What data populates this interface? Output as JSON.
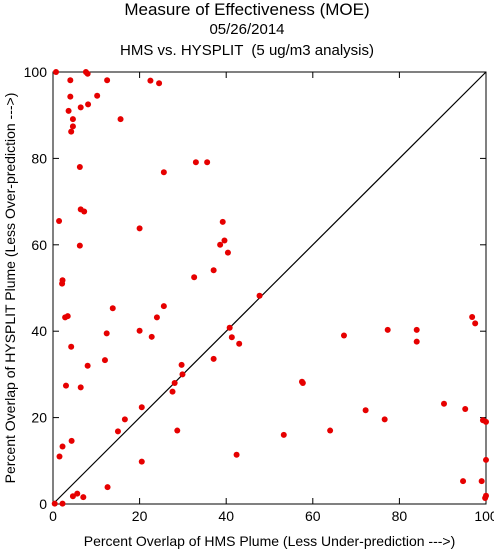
{
  "chart_data": {
    "type": "scatter",
    "title": "Measure of Effectiveness (MOE)",
    "subtitle_date": "05/26/2014",
    "subtitle": "HMS vs. HYSPLIT  (5 ug/m3 analysis)",
    "xlabel": "Percent Overlap of HMS Plume (Less Under-prediction --->)",
    "ylabel": "Percent Overlap of HYSPLIT Plume (Less Over-prediction --->)",
    "xlim": [
      0,
      100
    ],
    "ylim": [
      0,
      100
    ],
    "xticks": [
      0,
      20,
      40,
      60,
      80,
      100
    ],
    "yticks": [
      0,
      20,
      40,
      60,
      80,
      100
    ],
    "grid": false,
    "reference_line": "y = x",
    "marker_color": "#e60000",
    "points": [
      [
        0.7,
        100
      ],
      [
        7.6,
        100
      ],
      [
        8,
        99.6
      ],
      [
        12.5,
        98.1
      ],
      [
        4,
        98.1
      ],
      [
        22.5,
        98
      ],
      [
        24.5,
        97.4
      ],
      [
        4,
        94.3
      ],
      [
        10.2,
        94.5
      ],
      [
        8.1,
        92.5
      ],
      [
        6.4,
        91.8
      ],
      [
        3.6,
        91
      ],
      [
        4.6,
        89.1
      ],
      [
        15.6,
        89.1
      ],
      [
        4.6,
        87.4
      ],
      [
        4.2,
        86.2
      ],
      [
        6.2,
        78
      ],
      [
        33,
        79.1
      ],
      [
        35.6,
        79.1
      ],
      [
        25.6,
        76.8
      ],
      [
        6.4,
        68.2
      ],
      [
        7.2,
        67.7
      ],
      [
        1.4,
        65.5
      ],
      [
        39.2,
        65.3
      ],
      [
        20,
        63.8
      ],
      [
        39.6,
        61
      ],
      [
        38.6,
        60
      ],
      [
        6.2,
        59.8
      ],
      [
        40.4,
        58.2
      ],
      [
        37.1,
        54.1
      ],
      [
        32.6,
        52.5
      ],
      [
        2.2,
        51.8
      ],
      [
        2.1,
        51
      ],
      [
        47.7,
        48.2
      ],
      [
        25.6,
        45.8
      ],
      [
        13.8,
        45.3
      ],
      [
        3.4,
        43.5
      ],
      [
        2.8,
        43.2
      ],
      [
        24,
        43.2
      ],
      [
        40.8,
        40.8
      ],
      [
        20,
        40.1
      ],
      [
        12.4,
        39.5
      ],
      [
        22.8,
        38.7
      ],
      [
        41.3,
        38.6
      ],
      [
        67.2,
        39
      ],
      [
        77.3,
        40.3
      ],
      [
        84,
        40.3
      ],
      [
        84,
        37.6
      ],
      [
        96.8,
        43.3
      ],
      [
        97.5,
        41.8
      ],
      [
        43,
        37.1
      ],
      [
        4.2,
        36.4
      ],
      [
        37.1,
        33.6
      ],
      [
        12,
        33.3
      ],
      [
        8,
        32
      ],
      [
        29.7,
        32.2
      ],
      [
        29.9,
        30
      ],
      [
        28.1,
        28
      ],
      [
        3,
        27.4
      ],
      [
        6.4,
        27
      ],
      [
        27.6,
        26
      ],
      [
        57.5,
        28.3
      ],
      [
        57.7,
        28
      ],
      [
        20.5,
        22.4
      ],
      [
        72.2,
        21.7
      ],
      [
        90.3,
        23.2
      ],
      [
        95.2,
        22
      ],
      [
        99.3,
        19.4
      ],
      [
        100,
        19
      ],
      [
        16.6,
        19.6
      ],
      [
        76.6,
        19.6
      ],
      [
        15,
        16.8
      ],
      [
        28.7,
        17
      ],
      [
        53.3,
        16
      ],
      [
        64,
        17
      ],
      [
        4.3,
        14.6
      ],
      [
        2.2,
        13.3
      ],
      [
        1.5,
        11
      ],
      [
        42.4,
        11.4
      ],
      [
        20.5,
        9.8
      ],
      [
        100,
        10.2
      ],
      [
        99,
        5.3
      ],
      [
        94.7,
        5.3
      ],
      [
        12.6,
        3.9
      ],
      [
        5.6,
        2.4
      ],
      [
        7,
        1.6
      ],
      [
        4.6,
        1.8
      ],
      [
        100,
        1.9
      ],
      [
        99.8,
        1.4
      ],
      [
        2.2,
        0.1
      ],
      [
        0.4,
        0.1
      ]
    ]
  }
}
